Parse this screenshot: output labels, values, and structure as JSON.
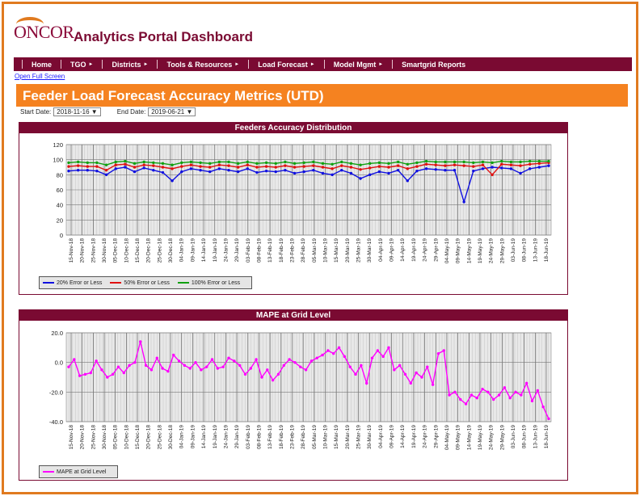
{
  "header": {
    "logo": "ONCOR",
    "title": "Analytics Portal Dashboard"
  },
  "nav": {
    "items": [
      "Home",
      "TGO",
      "Districts",
      "Tools & Resources",
      "Load Forecast",
      "Model Mgmt",
      "Smartgrid Reports"
    ]
  },
  "open_full_screen": "Open Full Screen",
  "page_title": "Feeder Load Forecast Accuracy Metrics (UTD)",
  "filters": {
    "start_label": "Start Date:",
    "start_value": "2018-11-16",
    "end_label": "End Date:",
    "end_value": "2019-06-21"
  },
  "colors": {
    "brand": "#7a0a32",
    "accent": "#f58220",
    "series_20": "#1010e0",
    "series_50": "#e01010",
    "series_100": "#10a010",
    "mape": "#ff00ff"
  },
  "chart_data": [
    {
      "type": "line",
      "title": "Feeders Accuracy Distribution",
      "ylim": [
        0,
        120
      ],
      "yticks": [
        0,
        20,
        40,
        60,
        80,
        100,
        120
      ],
      "x_labels": [
        "15-Nov-18",
        "20-Nov-18",
        "25-Nov-18",
        "30-Nov-18",
        "05-Dec-18",
        "10-Dec-18",
        "15-Dec-18",
        "20-Dec-18",
        "25-Dec-18",
        "30-Dec-18",
        "04-Jan-19",
        "09-Jan-19",
        "14-Jan-19",
        "19-Jan-19",
        "24-Jan-19",
        "29-Jan-19",
        "03-Feb-19",
        "08-Feb-19",
        "13-Feb-19",
        "18-Feb-19",
        "23-Feb-19",
        "28-Feb-19",
        "05-Mar-19",
        "10-Mar-19",
        "15-Mar-19",
        "20-Mar-19",
        "25-Mar-19",
        "30-Mar-19",
        "04-Apr-19",
        "09-Apr-19",
        "14-Apr-19",
        "19-Apr-19",
        "24-Apr-19",
        "29-Apr-19",
        "04-May-19",
        "09-May-19",
        "14-May-19",
        "19-May-19",
        "24-May-19",
        "29-May-19",
        "03-Jun-19",
        "08-Jun-19",
        "13-Jun-19",
        "18-Jun-19"
      ],
      "grid": true,
      "legend_position": "bottom-left",
      "series": [
        {
          "name": "20% Error or Less",
          "color": "#1010e0",
          "values": [
            85,
            86,
            86,
            85,
            80,
            88,
            90,
            84,
            89,
            86,
            83,
            72,
            84,
            88,
            86,
            84,
            88,
            86,
            84,
            88,
            83,
            85,
            84,
            86,
            82,
            84,
            86,
            82,
            80,
            86,
            82,
            75,
            80,
            84,
            82,
            86,
            72,
            85,
            88,
            87,
            86,
            86,
            44,
            85,
            88,
            90,
            89,
            88,
            82,
            88,
            90,
            92
          ]
        },
        {
          "name": "50% Error or Less",
          "color": "#e01010",
          "values": [
            91,
            92,
            91,
            91,
            86,
            93,
            94,
            90,
            93,
            92,
            90,
            88,
            91,
            93,
            91,
            90,
            93,
            92,
            90,
            93,
            90,
            91,
            90,
            92,
            90,
            91,
            92,
            90,
            88,
            92,
            90,
            87,
            89,
            91,
            90,
            92,
            88,
            91,
            94,
            93,
            92,
            93,
            92,
            91,
            93,
            80,
            94,
            93,
            92,
            94,
            95,
            96
          ]
        },
        {
          "name": "100% Error or Less",
          "color": "#10a010",
          "values": [
            96,
            97,
            96,
            96,
            93,
            97,
            98,
            95,
            97,
            96,
            95,
            93,
            96,
            97,
            96,
            95,
            97,
            97,
            95,
            97,
            95,
            96,
            95,
            97,
            95,
            96,
            97,
            95,
            94,
            97,
            95,
            93,
            95,
            96,
            95,
            97,
            94,
            96,
            98,
            97,
            97,
            97,
            97,
            96,
            97,
            96,
            98,
            97,
            97,
            98,
            98,
            98
          ]
        }
      ]
    },
    {
      "type": "line",
      "title": "MAPE at Grid Level",
      "ylim": [
        -40,
        20
      ],
      "yticks": [
        "20.0",
        "0.0",
        "-20.0",
        "-40.0"
      ],
      "x_labels": [
        "15-Nov-18",
        "20-Nov-18",
        "25-Nov-18",
        "30-Nov-18",
        "05-Dec-18",
        "10-Dec-18",
        "15-Dec-18",
        "20-Dec-18",
        "25-Dec-18",
        "30-Dec-18",
        "04-Jan-19",
        "09-Jan-19",
        "14-Jan-19",
        "19-Jan-19",
        "24-Jan-19",
        "29-Jan-19",
        "03-Feb-19",
        "08-Feb-19",
        "13-Feb-19",
        "18-Feb-19",
        "23-Feb-19",
        "28-Feb-19",
        "05-Mar-19",
        "10-Mar-19",
        "15-Mar-19",
        "20-Mar-19",
        "25-Mar-19",
        "30-Mar-19",
        "04-Apr-19",
        "09-Apr-19",
        "14-Apr-19",
        "19-Apr-19",
        "24-Apr-19",
        "29-Apr-19",
        "04-May-19",
        "09-May-19",
        "14-May-19",
        "19-May-19",
        "24-May-19",
        "29-May-19",
        "03-Jun-19",
        "08-Jun-19",
        "13-Jun-19",
        "18-Jun-19"
      ],
      "grid": true,
      "legend_position": "bottom-left",
      "series": [
        {
          "name": "MAPE at Grid Level",
          "color": "#ff00ff",
          "values": [
            -3,
            2,
            -9,
            -8,
            -7,
            1,
            -5,
            -10,
            -8,
            -3,
            -7,
            -2,
            0,
            14,
            -2,
            -5,
            3,
            -4,
            -6,
            5,
            1,
            -2,
            -4,
            0,
            -5,
            -3,
            2,
            -4,
            -3,
            3,
            1,
            -2,
            -8,
            -4,
            2,
            -10,
            -5,
            -12,
            -8,
            -2,
            2,
            0,
            -3,
            -5,
            1,
            3,
            5,
            8,
            6,
            10,
            4,
            -3,
            -8,
            -2,
            -14,
            3,
            8,
            4,
            10,
            -5,
            -2,
            -8,
            -14,
            -7,
            -10,
            -3,
            -15,
            6,
            8,
            -22,
            -20,
            -25,
            -28,
            -22,
            -24,
            -18,
            -20,
            -25,
            -22,
            -17,
            -24,
            -20,
            -22,
            -14,
            -26,
            -19,
            -30,
            -38
          ]
        }
      ]
    }
  ]
}
